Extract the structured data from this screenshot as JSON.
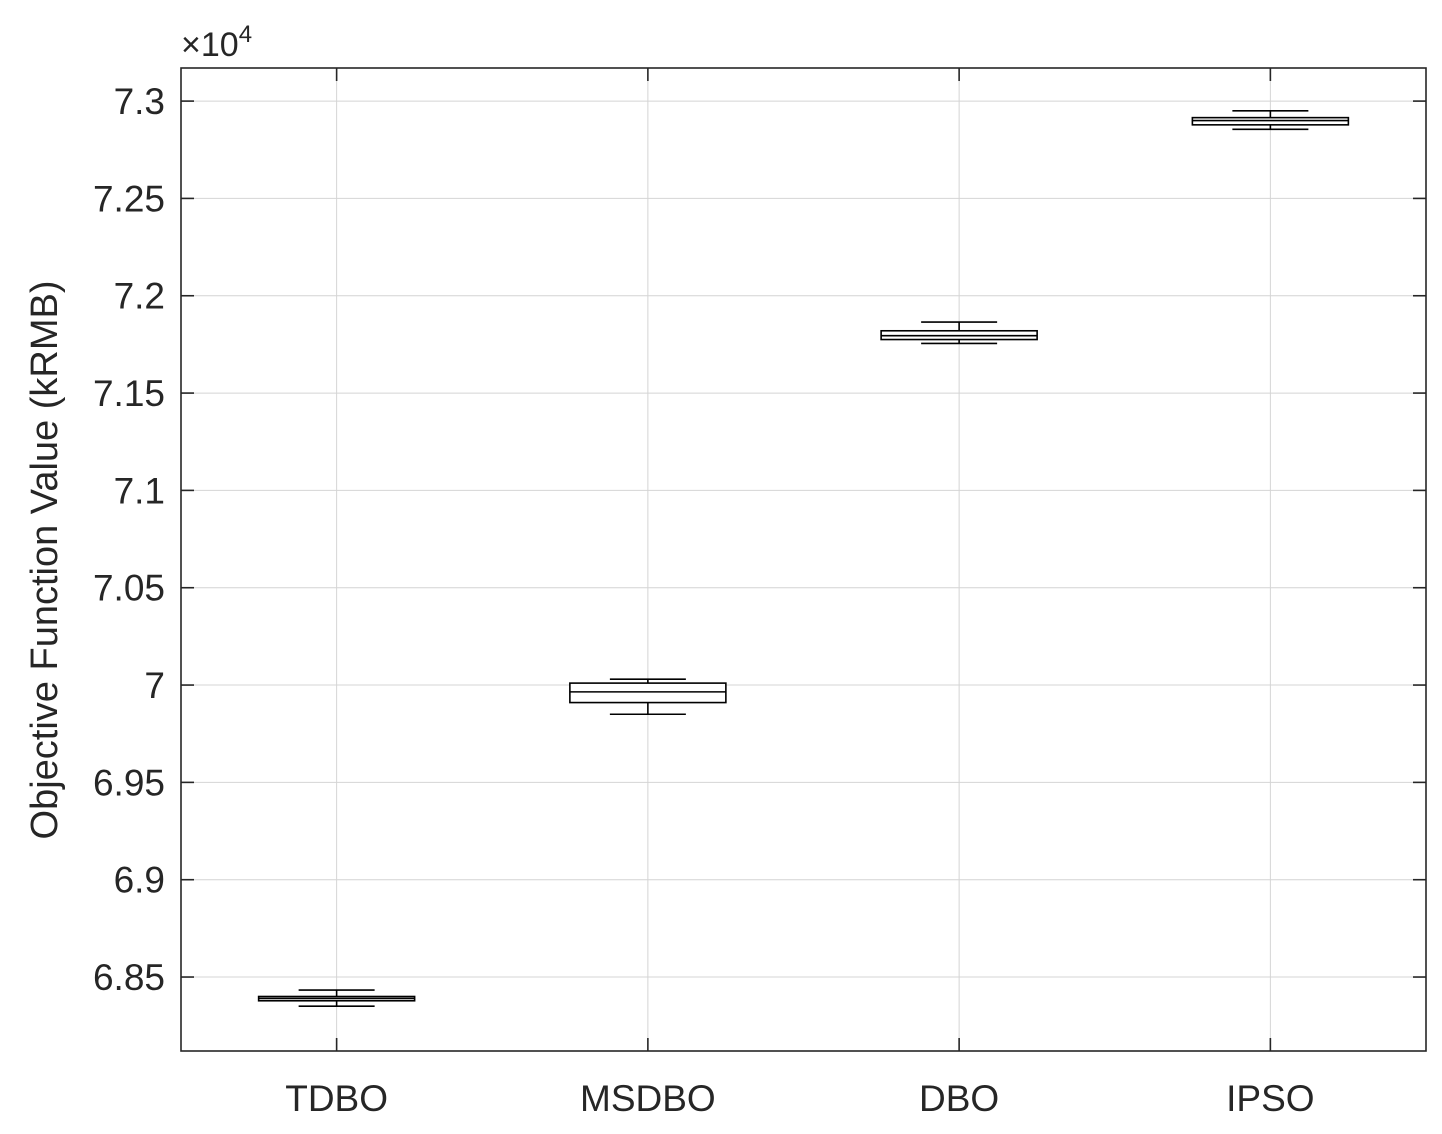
{
  "chart_data": {
    "type": "boxplot",
    "title": "",
    "xlabel": "",
    "ylabel": "Objective Function Value (kRMB)",
    "y_exponent_label": "×10",
    "y_exponent": "4",
    "ylim": [
      6.812,
      7.317
    ],
    "yticks": [
      6.85,
      6.9,
      6.95,
      7,
      7.05,
      7.1,
      7.15,
      7.2,
      7.25,
      7.3
    ],
    "ytick_labels": [
      "6.85",
      "6.9",
      "6.95",
      "7",
      "7.05",
      "7.1",
      "7.15",
      "7.2",
      "7.25",
      "7.3"
    ],
    "categories": [
      "TDBO",
      "MSDBO",
      "DBO",
      "IPSO"
    ],
    "boxes": [
      {
        "name": "TDBO",
        "min": 6.835,
        "q1": 6.8378,
        "median": 6.839,
        "q3": 6.84,
        "max": 6.8433
      },
      {
        "name": "MSDBO",
        "min": 6.985,
        "q1": 6.991,
        "median": 6.9965,
        "q3": 7.001,
        "max": 7.003
      },
      {
        "name": "DBO",
        "min": 7.1755,
        "q1": 7.1775,
        "median": 7.1795,
        "q3": 7.182,
        "max": 7.1865
      },
      {
        "name": "IPSO",
        "min": 7.2855,
        "q1": 7.2878,
        "median": 7.29,
        "q3": 7.2915,
        "max": 7.295
      }
    ],
    "grid": true,
    "colors": {
      "box": "#000000",
      "axis": "#262626",
      "grid": "#d4d4d4"
    }
  }
}
